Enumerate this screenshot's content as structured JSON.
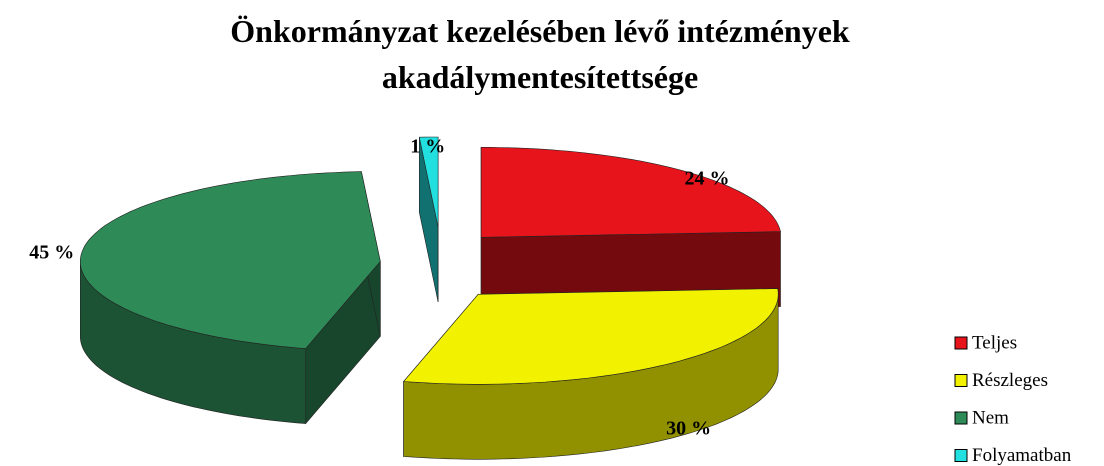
{
  "chart_data": {
    "type": "pie3d",
    "title": "Önkormányzat kezelésében lévő intézmények akadálymentesítettsége",
    "categories": [
      "Teljes",
      "Részleges",
      "Nem",
      "Folyamatban"
    ],
    "values": [
      24,
      30,
      45,
      1
    ],
    "value_labels": [
      "24 %",
      "30 %",
      "45 %",
      "1 %"
    ],
    "colors": [
      "#e8141c",
      "#f2f200",
      "#2e8b57",
      "#22e0e0"
    ],
    "legend": "right"
  }
}
